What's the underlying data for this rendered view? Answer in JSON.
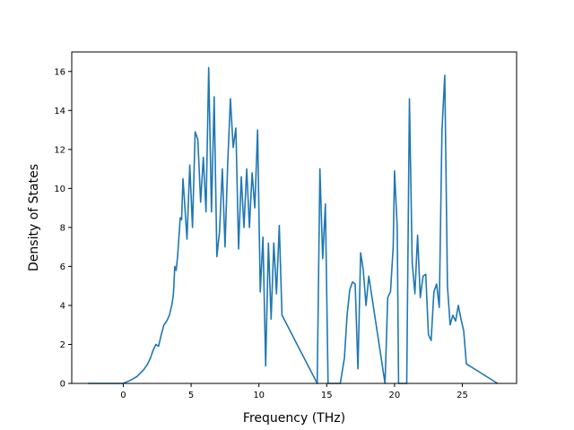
{
  "chart_data": {
    "type": "line",
    "xlabel": "Frequency (THz)",
    "ylabel": "Density of States",
    "xlim": [
      -3.8,
      29.0
    ],
    "ylim": [
      0,
      17
    ],
    "xticks": [
      0,
      5,
      10,
      15,
      20,
      25
    ],
    "yticks": [
      0,
      2,
      4,
      6,
      8,
      10,
      12,
      14,
      16
    ],
    "grid": false,
    "legend": "none",
    "series": [
      {
        "color": "#1f77b4",
        "x": [
          -2.6,
          0.0,
          0.5,
          1.0,
          1.5,
          1.8,
          2.0,
          2.2,
          2.4,
          2.6,
          2.8,
          3.0,
          3.2,
          3.4,
          3.6,
          3.7,
          3.8,
          3.9,
          4.0,
          4.1,
          4.2,
          4.3,
          4.4,
          4.5,
          4.7,
          4.9,
          5.1,
          5.3,
          5.5,
          5.7,
          5.9,
          6.1,
          6.3,
          6.5,
          6.7,
          6.9,
          7.1,
          7.3,
          7.5,
          7.7,
          7.9,
          8.1,
          8.3,
          8.5,
          8.7,
          8.9,
          9.1,
          9.3,
          9.5,
          9.7,
          9.9,
          10.1,
          10.3,
          10.5,
          10.7,
          10.9,
          11.1,
          11.3,
          11.5,
          11.7,
          14.3,
          14.5,
          14.7,
          14.9,
          15.1,
          16.0,
          16.3,
          16.5,
          16.7,
          16.9,
          17.1,
          17.3,
          17.5,
          17.7,
          17.9,
          18.1,
          19.3,
          19.5,
          19.7,
          19.9,
          20.0,
          20.2,
          20.3,
          20.9,
          21.1,
          21.3,
          21.5,
          21.7,
          21.9,
          22.1,
          22.3,
          22.5,
          22.7,
          22.9,
          23.1,
          23.3,
          23.5,
          23.7,
          23.9,
          24.1,
          24.3,
          24.5,
          24.7,
          24.9,
          25.1,
          25.3,
          27.6
        ],
        "y": [
          0.0,
          0.0,
          0.15,
          0.35,
          0.7,
          1.0,
          1.3,
          1.7,
          2.0,
          1.9,
          2.5,
          3.0,
          3.2,
          3.5,
          4.1,
          4.6,
          6.0,
          5.8,
          6.5,
          7.5,
          8.5,
          8.4,
          10.5,
          9.5,
          7.4,
          11.2,
          8.0,
          12.9,
          12.5,
          9.3,
          11.6,
          8.8,
          16.2,
          8.8,
          14.7,
          6.5,
          7.8,
          11.0,
          7.0,
          11.3,
          14.6,
          12.1,
          13.1,
          6.9,
          10.6,
          8.0,
          11.0,
          8.0,
          10.8,
          9.0,
          13.0,
          4.7,
          7.5,
          0.9,
          7.2,
          3.3,
          7.2,
          4.6,
          8.1,
          3.5,
          0.0,
          11.0,
          6.4,
          9.2,
          0.0,
          0.0,
          1.3,
          3.5,
          4.8,
          5.2,
          5.1,
          0.75,
          6.7,
          5.8,
          4.0,
          5.5,
          0.0,
          4.4,
          4.7,
          7.0,
          10.9,
          8.0,
          0.0,
          0.0,
          14.6,
          6.2,
          4.6,
          7.6,
          4.4,
          5.5,
          5.6,
          2.5,
          2.2,
          4.7,
          5.1,
          3.9,
          13.0,
          15.8,
          5.0,
          3.0,
          3.5,
          3.2,
          4.0,
          3.3,
          2.7,
          1.0,
          0.0
        ]
      }
    ]
  }
}
